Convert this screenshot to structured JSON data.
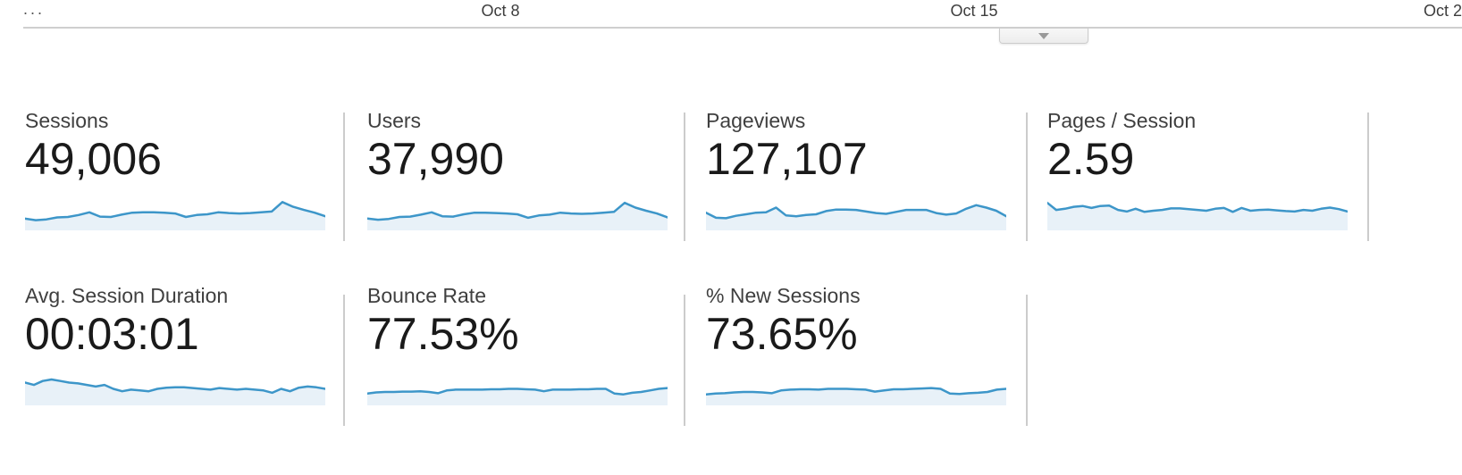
{
  "timeline": {
    "truncated_label": "...",
    "ticks": [
      {
        "label": "Oct 8"
      },
      {
        "label": "Oct 15"
      },
      {
        "label": "Oct 2"
      }
    ],
    "collapse_button": {
      "icon": "caret-down-icon"
    }
  },
  "colors": {
    "spark_line": "#3d96c9",
    "spark_fill": "#e8f1f8",
    "divider": "#cccccc",
    "axis_line": "#cfcfcf",
    "label_text": "#3f3f3f",
    "value_text": "#1a1a1a",
    "tick_text": "#3d3d3d"
  },
  "metrics": [
    {
      "id": "sessions",
      "label": "Sessions",
      "value": "49,006"
    },
    {
      "id": "users",
      "label": "Users",
      "value": "37,990"
    },
    {
      "id": "pageviews",
      "label": "Pageviews",
      "value": "127,107"
    },
    {
      "id": "pages-per-session",
      "label": "Pages / Session",
      "value": "2.59"
    },
    {
      "id": "avg-session-duration",
      "label": "Avg. Session Duration",
      "value": "00:03:01"
    },
    {
      "id": "bounce-rate",
      "label": "Bounce Rate",
      "value": "77.53%"
    },
    {
      "id": "percent-new-sessions",
      "label": "% New Sessions",
      "value": "73.65%"
    }
  ],
  "chart_data": [
    {
      "type": "area",
      "title": "Sessions sparkline",
      "summary_value": "49,006",
      "x_axis": "daily, early-to-late October",
      "x_ticks_visible": [
        "Oct 8",
        "Oct 15",
        "Oct 2"
      ],
      "ylabel": "",
      "unit": "relative height 0-100",
      "grid": false,
      "legend": "none",
      "values": [
        30,
        26,
        28,
        33,
        34,
        39,
        46,
        35,
        34,
        40,
        45,
        46,
        46,
        45,
        43,
        34,
        39,
        41,
        46,
        44,
        43,
        44,
        46,
        48,
        72,
        60,
        52,
        45,
        36
      ]
    },
    {
      "type": "area",
      "title": "Users sparkline",
      "summary_value": "37,990",
      "x_axis": "daily, early-to-late October",
      "x_ticks_visible": [
        "Oct 8",
        "Oct 15",
        "Oct 2"
      ],
      "ylabel": "",
      "unit": "relative height 0-100",
      "grid": false,
      "legend": "none",
      "values": [
        30,
        27,
        29,
        34,
        35,
        40,
        46,
        36,
        35,
        41,
        45,
        45,
        44,
        43,
        41,
        32,
        38,
        40,
        45,
        43,
        42,
        43,
        45,
        47,
        70,
        58,
        50,
        43,
        33
      ]
    },
    {
      "type": "area",
      "title": "Pageviews sparkline",
      "summary_value": "127,107",
      "x_axis": "daily, early-to-late October",
      "x_ticks_visible": [
        "Oct 8",
        "Oct 15",
        "Oct 2"
      ],
      "ylabel": "",
      "unit": "relative height 0-100",
      "grid": false,
      "legend": "none",
      "values": [
        45,
        32,
        31,
        37,
        41,
        45,
        46,
        58,
        38,
        36,
        39,
        41,
        49,
        53,
        53,
        52,
        48,
        44,
        42,
        47,
        52,
        52,
        52,
        44,
        40,
        43,
        55,
        64,
        58,
        50,
        36
      ]
    },
    {
      "type": "area",
      "title": "Pages / Session sparkline",
      "summary_value": "2.59",
      "x_axis": "daily, early-to-late October",
      "x_ticks_visible": [
        "Oct 8",
        "Oct 15",
        "Oct 2"
      ],
      "ylabel": "",
      "unit": "relative height 0-100",
      "grid": false,
      "legend": "none",
      "values": [
        70,
        52,
        55,
        60,
        62,
        57,
        62,
        63,
        52,
        48,
        55,
        47,
        50,
        52,
        56,
        56,
        54,
        52,
        50,
        55,
        57,
        47,
        57,
        50,
        52,
        53,
        51,
        49,
        48,
        52,
        50,
        55,
        58,
        54,
        48
      ]
    },
    {
      "type": "area",
      "title": "Avg. Session Duration sparkline",
      "summary_value": "00:03:01",
      "x_axis": "daily, early-to-late October",
      "x_ticks_visible": [
        "Oct 8",
        "Oct 15",
        "Oct 2"
      ],
      "ylabel": "",
      "unit": "relative height 0-100",
      "grid": false,
      "legend": "none",
      "values": [
        58,
        52,
        62,
        66,
        62,
        58,
        56,
        52,
        48,
        52,
        42,
        36,
        40,
        38,
        36,
        42,
        45,
        46,
        46,
        44,
        42,
        40,
        44,
        42,
        40,
        42,
        40,
        38,
        32,
        42,
        36,
        45,
        48,
        46,
        42
      ]
    },
    {
      "type": "area",
      "title": "Bounce Rate sparkline",
      "summary_value": "77.53%",
      "x_axis": "daily, early-to-late October",
      "x_ticks_visible": [
        "Oct 8",
        "Oct 15",
        "Oct 2"
      ],
      "ylabel": "",
      "unit": "relative height 0-100",
      "grid": false,
      "legend": "none",
      "values": [
        30,
        33,
        34,
        34,
        35,
        35,
        36,
        34,
        31,
        38,
        40,
        40,
        40,
        40,
        41,
        41,
        42,
        42,
        41,
        40,
        36,
        40,
        40,
        40,
        41,
        41,
        42,
        42,
        30,
        28,
        32,
        34,
        38,
        42,
        44
      ]
    },
    {
      "type": "area",
      "title": "% New Sessions sparkline",
      "summary_value": "73.65%",
      "x_axis": "daily, early-to-late October",
      "x_ticks_visible": [
        "Oct 8",
        "Oct 15",
        "Oct 2"
      ],
      "ylabel": "",
      "unit": "relative height 0-100",
      "grid": false,
      "legend": "none",
      "values": [
        28,
        30,
        31,
        33,
        34,
        34,
        33,
        31,
        38,
        40,
        41,
        41,
        40,
        42,
        42,
        42,
        41,
        40,
        35,
        38,
        41,
        41,
        42,
        43,
        44,
        42,
        30,
        29,
        31,
        32,
        34,
        40,
        42
      ]
    }
  ]
}
